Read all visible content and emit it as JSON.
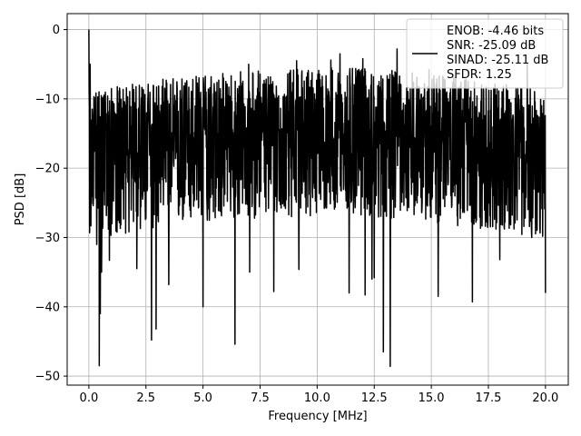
{
  "chart_data": {
    "type": "line",
    "title": "",
    "xlabel": "Frequency [MHz]",
    "ylabel": "PSD [dB]",
    "xlim": [
      -0.95,
      21.0
    ],
    "ylim": [
      -51.3,
      2.3
    ],
    "x_ticks": [
      0.0,
      2.5,
      5.0,
      7.5,
      10.0,
      12.5,
      15.0,
      17.5,
      20.0
    ],
    "x_tick_labels": [
      "0.0",
      "2.5",
      "5.0",
      "7.5",
      "10.0",
      "12.5",
      "15.0",
      "17.5",
      "20.0"
    ],
    "y_ticks": [
      0,
      -10,
      -20,
      -30,
      -40,
      -50
    ],
    "y_tick_labels": [
      "0",
      "−10",
      "−20",
      "−30",
      "−40",
      "−50"
    ],
    "grid": true,
    "legend_position": "top-right",
    "series": [
      {
        "name": "ENOB: -4.46 bits\nSNR: -25.09 dB\nSINAD: -25.11 dB\nSFDR: 1.25",
        "color": "#000000",
        "x_range": [
          0.0,
          20.0
        ],
        "spikes": [
          {
            "x": 0.0,
            "y": 0.0
          },
          {
            "x": 0.06,
            "y": -5.0
          },
          {
            "x": 0.15,
            "y": -11.5
          },
          {
            "x": 0.2,
            "y": -24.5
          },
          {
            "x": 0.35,
            "y": -31.0
          },
          {
            "x": 0.45,
            "y": -48.5
          },
          {
            "x": 0.5,
            "y": -41.0
          },
          {
            "x": 0.55,
            "y": -35.0
          },
          {
            "x": 0.9,
            "y": -33.3
          },
          {
            "x": 1.7,
            "y": -9.7
          },
          {
            "x": 2.1,
            "y": -34.5
          },
          {
            "x": 2.75,
            "y": -44.8
          },
          {
            "x": 2.95,
            "y": -43.2
          },
          {
            "x": 3.5,
            "y": -36.8
          },
          {
            "x": 5.0,
            "y": -40.0
          },
          {
            "x": 6.0,
            "y": -7.5
          },
          {
            "x": 6.4,
            "y": -45.4
          },
          {
            "x": 7.0,
            "y": -5.0
          },
          {
            "x": 7.05,
            "y": -35.0
          },
          {
            "x": 7.9,
            "y": -8.0
          },
          {
            "x": 8.1,
            "y": -37.8
          },
          {
            "x": 9.1,
            "y": -4.5
          },
          {
            "x": 9.2,
            "y": -34.6
          },
          {
            "x": 10.6,
            "y": -4.4
          },
          {
            "x": 11.0,
            "y": -3.5
          },
          {
            "x": 11.4,
            "y": -38.0
          },
          {
            "x": 12.0,
            "y": -4.2
          },
          {
            "x": 12.1,
            "y": -38.3
          },
          {
            "x": 12.4,
            "y": -36.0
          },
          {
            "x": 12.5,
            "y": -35.8
          },
          {
            "x": 12.9,
            "y": -46.5
          },
          {
            "x": 13.2,
            "y": -48.6
          },
          {
            "x": 13.5,
            "y": -2.8
          },
          {
            "x": 14.9,
            "y": -5.8
          },
          {
            "x": 15.3,
            "y": -38.5
          },
          {
            "x": 16.3,
            "y": -7.6
          },
          {
            "x": 16.8,
            "y": -39.3
          },
          {
            "x": 18.0,
            "y": -33.2
          },
          {
            "x": 19.2,
            "y": -5.0
          },
          {
            "x": 20.0,
            "y": -38.0
          }
        ]
      }
    ]
  }
}
